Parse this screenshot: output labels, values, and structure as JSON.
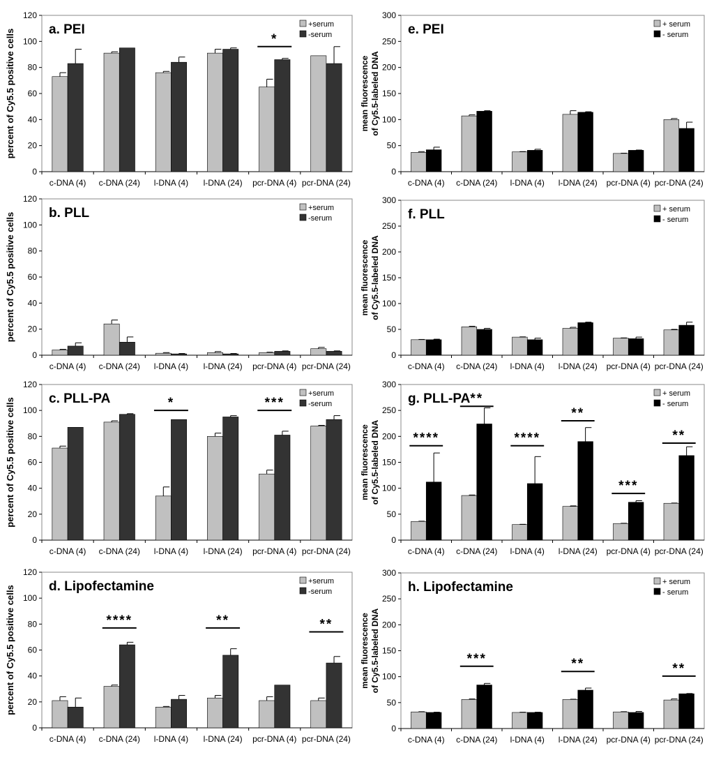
{
  "colors": {
    "serum_plus": "#c0c0c0",
    "serum_minus_left": "#333333",
    "serum_minus_right": "#000000"
  },
  "categories": [
    "c-DNA (4)",
    "c-DNA (24)",
    "l-DNA (4)",
    "l-DNA (24)",
    "pcr-DNA (4)",
    "pcr-DNA (24)"
  ],
  "chart_data": [
    {
      "id": "a",
      "type": "bar",
      "title": "a. PEI",
      "ylabel": "percent of Cy5.5 positive cells",
      "ylim": [
        0,
        120
      ],
      "yticks": [
        "0",
        "20",
        "40",
        "60",
        "80",
        "100",
        "120"
      ],
      "legend": [
        "+serum",
        "-serum"
      ],
      "legend_position": "top-right",
      "categories": [
        "c-DNA (4)",
        "c-DNA (24)",
        "l-DNA (4)",
        "l-DNA (24)",
        "pcr-DNA (4)",
        "pcr-DNA (24)"
      ],
      "series": [
        {
          "name": "+serum",
          "values": [
            73,
            91,
            76,
            91,
            65,
            89
          ],
          "errors": [
            3,
            1,
            1,
            3,
            6,
            0
          ]
        },
        {
          "name": "-serum",
          "values": [
            83,
            95,
            84,
            94,
            86,
            83
          ],
          "errors": [
            11,
            0,
            4,
            1,
            1,
            13
          ]
        }
      ],
      "significance": [
        {
          "category": 4,
          "label": "*",
          "value": 96
        }
      ]
    },
    {
      "id": "b",
      "type": "bar",
      "title": "b. PLL",
      "ylabel": "percent of Cy5.5 positive cells",
      "ylim": [
        0,
        120
      ],
      "yticks": [
        "0",
        "20",
        "40",
        "60",
        "80",
        "100",
        "120"
      ],
      "legend": [
        "+serum",
        "-serum"
      ],
      "legend_position": "top-right",
      "categories": [
        "c-DNA (4)",
        "c-DNA (24)",
        "l-DNA (4)",
        "l-DNA (24)",
        "pcr-DNA (4)",
        "pcr-DNA (24)"
      ],
      "series": [
        {
          "name": "+serum",
          "values": [
            4,
            24,
            1.5,
            2,
            2,
            5
          ],
          "errors": [
            0.5,
            3,
            0.5,
            0.8,
            0.3,
            1
          ]
        },
        {
          "name": "-serum",
          "values": [
            7,
            10,
            1,
            1,
            3,
            3
          ],
          "errors": [
            2.5,
            4,
            0.3,
            0.3,
            0.3,
            0.3
          ]
        }
      ],
      "significance": []
    },
    {
      "id": "c",
      "type": "bar",
      "title": "c. PLL-PA",
      "ylabel": "percent of Cy5.5 positive cells",
      "ylim": [
        0,
        120
      ],
      "yticks": [
        "0",
        "20",
        "40",
        "60",
        "80",
        "100",
        "120"
      ],
      "legend": [
        "+serum",
        "-serum"
      ],
      "legend_position": "top-right",
      "categories": [
        "c-DNA (4)",
        "c-DNA (24)",
        "l-DNA (4)",
        "l-DNA (24)",
        "pcr-DNA (4)",
        "pcr-DNA (24)"
      ],
      "series": [
        {
          "name": "+serum",
          "values": [
            71,
            91,
            34,
            80,
            51,
            88
          ],
          "errors": [
            1.5,
            1,
            7,
            2.5,
            3,
            0.5
          ]
        },
        {
          "name": "-serum",
          "values": [
            87,
            97,
            93,
            95,
            81,
            93
          ],
          "errors": [
            0,
            0.5,
            0,
            1,
            3,
            3
          ]
        }
      ],
      "significance": [
        {
          "category": 2,
          "label": "*",
          "value": 100
        },
        {
          "category": 4,
          "label": "***",
          "value": 100
        }
      ]
    },
    {
      "id": "d",
      "type": "bar",
      "title": "d. Lipofectamine",
      "ylabel": "percent of Cy5.5 positive cells",
      "ylim": [
        0,
        120
      ],
      "yticks": [
        "0",
        "20",
        "40",
        "60",
        "80",
        "100",
        "120"
      ],
      "legend": [
        "+serum",
        "-serum"
      ],
      "legend_position": "top-right",
      "categories": [
        "c-DNA (4)",
        "c-DNA (24)",
        "l-DNA (4)",
        "l-DNA (24)",
        "pcr-DNA (4)",
        "pcr-DNA (24)"
      ],
      "series": [
        {
          "name": "+serum",
          "values": [
            21,
            32,
            16,
            23,
            21,
            21
          ],
          "errors": [
            3,
            1,
            0.5,
            2,
            3,
            2
          ]
        },
        {
          "name": "-serum",
          "values": [
            16,
            64,
            22,
            56,
            33,
            50
          ],
          "errors": [
            7,
            2,
            3,
            5,
            0,
            5
          ]
        }
      ],
      "significance": [
        {
          "category": 1,
          "label": "****",
          "value": 77
        },
        {
          "category": 3,
          "label": "**",
          "value": 77
        },
        {
          "category": 5,
          "label": "**",
          "value": 74
        }
      ]
    },
    {
      "id": "e",
      "type": "bar",
      "title": "e. PEI",
      "ylabel": [
        "mean fluorescence",
        "of Cy5.5-labeled DNA"
      ],
      "ylim": [
        0,
        300
      ],
      "yticks": [
        "0",
        "50",
        "100",
        "150",
        "200",
        "250",
        "300"
      ],
      "legend": [
        "+ serum",
        "- serum"
      ],
      "legend_position": "top-right",
      "categories": [
        "c-DNA (4)",
        "c-DNA (24)",
        "l-DNA (4)",
        "l-DNA (24)",
        "pcr-DNA (4)",
        "pcr-DNA (24)"
      ],
      "series": [
        {
          "name": "+ serum",
          "values": [
            37,
            107,
            38,
            110,
            35,
            100
          ],
          "errors": [
            1.5,
            2,
            0.5,
            7,
            0.5,
            2
          ]
        },
        {
          "name": "- serum",
          "values": [
            42,
            116,
            41,
            114,
            41,
            83
          ],
          "errors": [
            5,
            1,
            2,
            1,
            0.5,
            12
          ]
        }
      ],
      "significance": []
    },
    {
      "id": "f",
      "type": "bar",
      "title": "f. PLL",
      "ylabel": [
        "mean fluorescence",
        "of Cy5.5-labeled DNA"
      ],
      "ylim": [
        0,
        300
      ],
      "yticks": [
        "0",
        "50",
        "100",
        "150",
        "200",
        "250",
        "300"
      ],
      "legend": [
        "+ serum",
        "- serum"
      ],
      "legend_position": "top-right",
      "categories": [
        "c-DNA (4)",
        "c-DNA (24)",
        "l-DNA (4)",
        "l-DNA (24)",
        "pcr-DNA (4)",
        "pcr-DNA (24)"
      ],
      "series": [
        {
          "name": "+ serum",
          "values": [
            30,
            55,
            35,
            52,
            33,
            49
          ],
          "errors": [
            0.5,
            1,
            0.5,
            2,
            0.5,
            1
          ]
        },
        {
          "name": "- serum",
          "values": [
            30,
            50,
            30,
            63,
            32,
            58
          ],
          "errors": [
            1,
            2,
            3,
            1,
            3,
            6
          ]
        }
      ],
      "significance": []
    },
    {
      "id": "g",
      "type": "bar",
      "title": "g. PLL-PA",
      "ylabel": [
        "mean fluorescence",
        "of Cy5.5-labeled DNA"
      ],
      "ylim": [
        0,
        300
      ],
      "yticks": [
        "0",
        "50",
        "100",
        "150",
        "200",
        "250",
        "300"
      ],
      "legend": [
        "+ serum",
        "- serum"
      ],
      "legend_position": "top-right",
      "categories": [
        "c-DNA (4)",
        "c-DNA (24)",
        "l-DNA (4)",
        "l-DNA (24)",
        "pcr-DNA (4)",
        "pcr-DNA (24)"
      ],
      "series": [
        {
          "name": "+ serum",
          "values": [
            36,
            86,
            30,
            65,
            32,
            71
          ],
          "errors": [
            0.5,
            1,
            0.5,
            1,
            0.5,
            0.5
          ]
        },
        {
          "name": "- serum",
          "values": [
            112,
            224,
            109,
            190,
            73,
            163
          ],
          "errors": [
            56,
            31,
            52,
            27,
            3,
            17
          ]
        }
      ],
      "significance": [
        {
          "category": 0,
          "label": "****",
          "value": 182
        },
        {
          "category": 1,
          "label": "**",
          "value": 258
        },
        {
          "category": 2,
          "label": "****",
          "value": 182
        },
        {
          "category": 3,
          "label": "**",
          "value": 230
        },
        {
          "category": 4,
          "label": "***",
          "value": 90
        },
        {
          "category": 5,
          "label": "**",
          "value": 187
        }
      ]
    },
    {
      "id": "h",
      "type": "bar",
      "title": "h. Lipofectamine",
      "ylabel": [
        "mean fluorescence",
        "of Cy5.5-labeled DNA"
      ],
      "ylim": [
        0,
        300
      ],
      "yticks": [
        "0",
        "50",
        "100",
        "150",
        "200",
        "250",
        "300"
      ],
      "legend": [
        "+ serum",
        "- serum"
      ],
      "legend_position": "top-right",
      "categories": [
        "c-DNA (4)",
        "c-DNA (24)",
        "l-DNA (4)",
        "l-DNA (24)",
        "pcr-DNA (4)",
        "pcr-DNA (24)"
      ],
      "series": [
        {
          "name": "+ serum",
          "values": [
            32,
            56,
            31,
            56,
            32,
            55
          ],
          "errors": [
            0.5,
            1,
            0.5,
            0.5,
            0.5,
            2
          ]
        },
        {
          "name": "- serum",
          "values": [
            31,
            84,
            31,
            74,
            31,
            67
          ],
          "errors": [
            0.5,
            3,
            0.5,
            4,
            2,
            0.5
          ]
        }
      ],
      "significance": [
        {
          "category": 1,
          "label": "***",
          "value": 120
        },
        {
          "category": 3,
          "label": "**",
          "value": 110
        },
        {
          "category": 5,
          "label": "**",
          "value": 101
        }
      ]
    }
  ]
}
